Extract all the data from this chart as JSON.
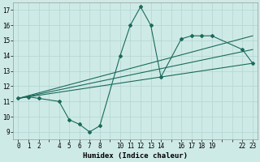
{
  "xlabel": "Humidex (Indice chaleur)",
  "background_color": "#ceeae7",
  "grid_color": "#b8d8d5",
  "line_color": "#1a6b5a",
  "xlim": [
    -0.5,
    23.5
  ],
  "ylim": [
    8.5,
    17.5
  ],
  "xticks_all": [
    0,
    1,
    2,
    3,
    4,
    5,
    6,
    7,
    8,
    9,
    10,
    11,
    12,
    13,
    14,
    15,
    16,
    17,
    18,
    19,
    20,
    21,
    22,
    23
  ],
  "xtick_labels_pos": [
    0,
    1,
    2,
    4,
    5,
    6,
    7,
    8,
    10,
    11,
    12,
    13,
    14,
    16,
    17,
    18,
    19,
    22,
    23
  ],
  "yticks": [
    9,
    10,
    11,
    12,
    13,
    14,
    15,
    16,
    17
  ],
  "main_line_x": [
    0,
    1,
    2,
    4,
    5,
    6,
    7,
    8,
    10,
    11,
    12,
    13,
    14,
    16,
    17,
    18,
    19,
    22,
    23
  ],
  "main_line_y": [
    11.2,
    11.3,
    11.2,
    11.0,
    9.8,
    9.5,
    9.0,
    9.4,
    14.0,
    16.0,
    17.2,
    16.0,
    12.6,
    15.1,
    15.3,
    15.3,
    15.3,
    14.4,
    13.5
  ],
  "trend_line1_x": [
    0,
    23
  ],
  "trend_line1_y": [
    11.2,
    14.4
  ],
  "trend_line2_x": [
    0,
    23
  ],
  "trend_line2_y": [
    11.2,
    13.5
  ],
  "trend_line3_x": [
    0,
    23
  ],
  "trend_line3_y": [
    11.2,
    15.3
  ]
}
